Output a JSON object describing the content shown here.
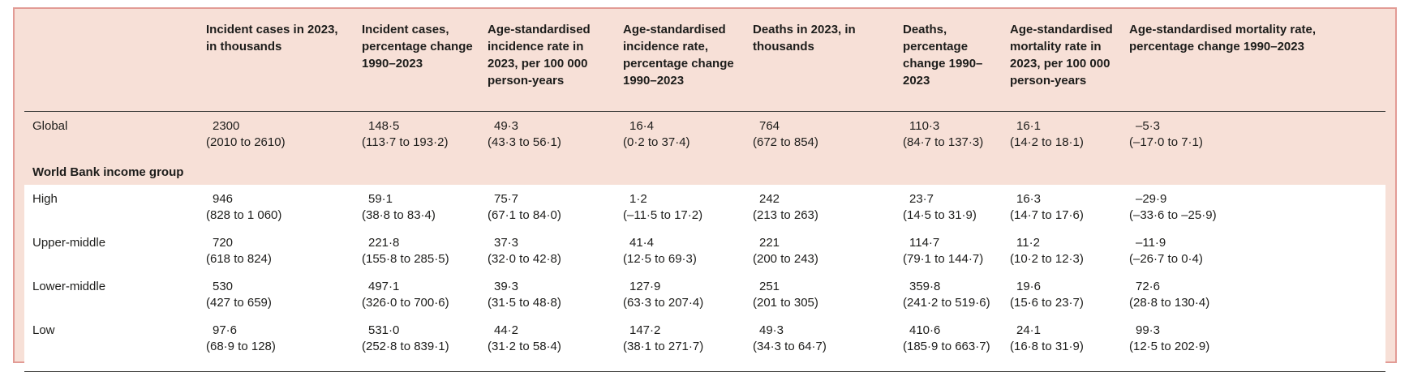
{
  "table": {
    "columns": [
      "Incident cases in 2023, in thousands",
      "Incident cases, percentage change 1990–2023",
      "Age-standardised incidence rate in 2023, per 100 000 person-years",
      "Age-standardised incidence rate, percentage change 1990–2023",
      "Deaths in 2023, in thousands",
      "Deaths, percentage change 1990–2023",
      "Age-standardised mortality rate in 2023, per 100 000 person-years",
      "Age-standardised mortality rate, percentage change 1990–2023"
    ],
    "rows": [
      {
        "label": "Global",
        "cells": [
          {
            "v": "2300",
            "ci": "(2010 to 2610)"
          },
          {
            "v": "148·5",
            "ci": "(113·7 to 193·2)"
          },
          {
            "v": "49·3",
            "ci": "(43·3 to 56·1)"
          },
          {
            "v": "16·4",
            "ci": "(0·2 to 37·4)"
          },
          {
            "v": "764",
            "ci": "(672 to 854)"
          },
          {
            "v": "110·3",
            "ci": "(84·7 to 137·3)"
          },
          {
            "v": "16·1",
            "ci": "(14·2 to 18·1)"
          },
          {
            "v": "–5·3",
            "ci": "(–17·0 to 7·1)"
          }
        ]
      },
      {
        "label": "World Bank income group",
        "section": true
      },
      {
        "label": "High",
        "cells": [
          {
            "v": "946",
            "ci": "(828 to 1 060)"
          },
          {
            "v": "59·1",
            "ci": "(38·8 to 83·4)"
          },
          {
            "v": "75·7",
            "ci": "(67·1 to 84·0)"
          },
          {
            "v": "1·2",
            "ci": "(–11·5 to 17·2)"
          },
          {
            "v": "242",
            "ci": "(213 to 263)"
          },
          {
            "v": "23·7",
            "ci": "(14·5 to 31·9)"
          },
          {
            "v": "16·3",
            "ci": "(14·7 to 17·6)"
          },
          {
            "v": "–29·9",
            "ci": "(–33·6 to –25·9)"
          }
        ]
      },
      {
        "label": "Upper-middle",
        "cells": [
          {
            "v": "720",
            "ci": "(618 to 824)"
          },
          {
            "v": "221·8",
            "ci": "(155·8 to 285·5)"
          },
          {
            "v": "37·3",
            "ci": "(32·0 to 42·8)"
          },
          {
            "v": "41·4",
            "ci": "(12·5 to 69·3)"
          },
          {
            "v": "221",
            "ci": "(200 to 243)"
          },
          {
            "v": "114·7",
            "ci": "(79·1 to 144·7)"
          },
          {
            "v": "11·2",
            "ci": "(10·2 to 12·3)"
          },
          {
            "v": "–11·9",
            "ci": "(–26·7 to 0·4)"
          }
        ]
      },
      {
        "label": "Lower-middle",
        "cells": [
          {
            "v": "530",
            "ci": "(427 to 659)"
          },
          {
            "v": "497·1",
            "ci": "(326·0 to 700·6)"
          },
          {
            "v": "39·3",
            "ci": "(31·5 to 48·8)"
          },
          {
            "v": "127·9",
            "ci": "(63·3 to 207·4)"
          },
          {
            "v": "251",
            "ci": "(201 to 305)"
          },
          {
            "v": "359·8",
            "ci": "(241·2 to 519·6)"
          },
          {
            "v": "19·6",
            "ci": "(15·6 to 23·7)"
          },
          {
            "v": "72·6",
            "ci": "(28·8 to 130·4)"
          }
        ]
      },
      {
        "label": "Low",
        "cells": [
          {
            "v": "97·6",
            "ci": "(68·9 to 128)"
          },
          {
            "v": "531·0",
            "ci": "(252·8 to 839·1)"
          },
          {
            "v": "44·2",
            "ci": "(31·2 to 58·4)"
          },
          {
            "v": "147·2",
            "ci": "(38·1 to 271·7)"
          },
          {
            "v": "49·3",
            "ci": "(34·3 to 64·7)"
          },
          {
            "v": "410·6",
            "ci": "(185·9 to 663·7)"
          },
          {
            "v": "24·1",
            "ci": "(16·8 to 31·9)"
          },
          {
            "v": "99·3",
            "ci": "(12·5 to 202·9)"
          }
        ]
      }
    ]
  },
  "colors": {
    "table_background": "#f7e0d7",
    "border": "#e29b95",
    "text": "#1d1d1b",
    "rule": "#3c3c3a",
    "band_row": "#ffffff"
  }
}
